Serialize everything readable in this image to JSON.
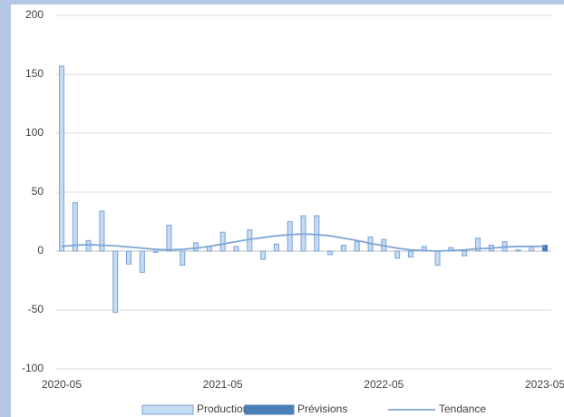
{
  "chart_data": {
    "type": "bar",
    "categories": [
      "2020-05",
      null,
      null,
      null,
      null,
      null,
      null,
      null,
      null,
      null,
      null,
      null,
      "2021-05",
      null,
      null,
      null,
      null,
      null,
      null,
      null,
      null,
      null,
      null,
      null,
      "2022-05",
      null,
      null,
      null,
      null,
      null,
      null,
      null,
      null,
      null,
      null,
      null,
      "2023-05"
    ],
    "series": [
      {
        "name": "Production",
        "color": "#c5dbf2",
        "values": [
          157,
          41,
          9,
          34,
          -52,
          -11,
          -18,
          -1,
          22,
          -12,
          7,
          4,
          16,
          4,
          18,
          -7,
          6,
          25,
          30,
          30,
          -3,
          5,
          8,
          12,
          10,
          -6,
          -5,
          4,
          -12,
          3,
          -4,
          11,
          5,
          8,
          1,
          4,
          null
        ]
      },
      {
        "name": "Prévisions",
        "color": "#4a7fb9",
        "values": [
          null,
          null,
          null,
          null,
          null,
          null,
          null,
          null,
          null,
          null,
          null,
          null,
          null,
          null,
          null,
          null,
          null,
          null,
          null,
          null,
          null,
          null,
          null,
          null,
          null,
          null,
          null,
          null,
          null,
          null,
          null,
          null,
          null,
          null,
          null,
          null,
          5
        ]
      },
      {
        "name": "Tendance",
        "type": "line",
        "color": "#7ea6d6",
        "values": [
          4,
          5,
          5.5,
          5,
          4.5,
          3.5,
          2.5,
          1.5,
          1,
          1.5,
          2.5,
          4,
          6,
          8,
          10,
          11.5,
          13,
          14,
          14.5,
          14,
          13,
          11,
          9,
          6.5,
          4.5,
          2.5,
          1,
          0.5,
          0,
          0.5,
          1,
          2,
          2.5,
          3.5,
          4,
          4,
          4
        ]
      }
    ],
    "ylim": [
      -100,
      200
    ],
    "yticks": [
      -100,
      -50,
      0,
      50,
      100,
      150,
      200
    ],
    "grid": true
  }
}
